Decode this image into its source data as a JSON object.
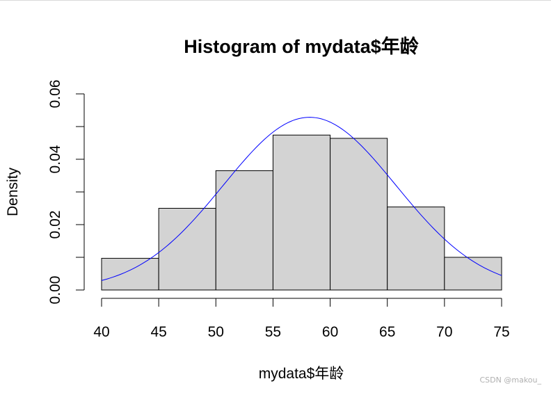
{
  "chart_data": {
    "type": "bar",
    "title": "Histogram of mydata$年龄",
    "xlabel": "mydata$年龄",
    "ylabel": "Density",
    "bin_edges": [
      40,
      45,
      50,
      55,
      60,
      65,
      70,
      75
    ],
    "values": [
      0.0097,
      0.025,
      0.0365,
      0.0474,
      0.0464,
      0.0254,
      0.01
    ],
    "x_ticks": [
      "40",
      "45",
      "50",
      "55",
      "60",
      "65",
      "70",
      "75"
    ],
    "y_ticks": [
      "0.00",
      "0.02",
      "0.04",
      "0.06"
    ],
    "xlim": [
      40,
      75
    ],
    "ylim": [
      0,
      0.06
    ],
    "grid": false,
    "bar_fill": "#d3d3d3",
    "bar_stroke": "#000000",
    "density_curve": {
      "color": "#0000ff",
      "distribution": "normal",
      "mean": 58.2,
      "sd": 7.55,
      "x_range": [
        40,
        75
      ]
    }
  },
  "watermark": "CSDN @makou_"
}
